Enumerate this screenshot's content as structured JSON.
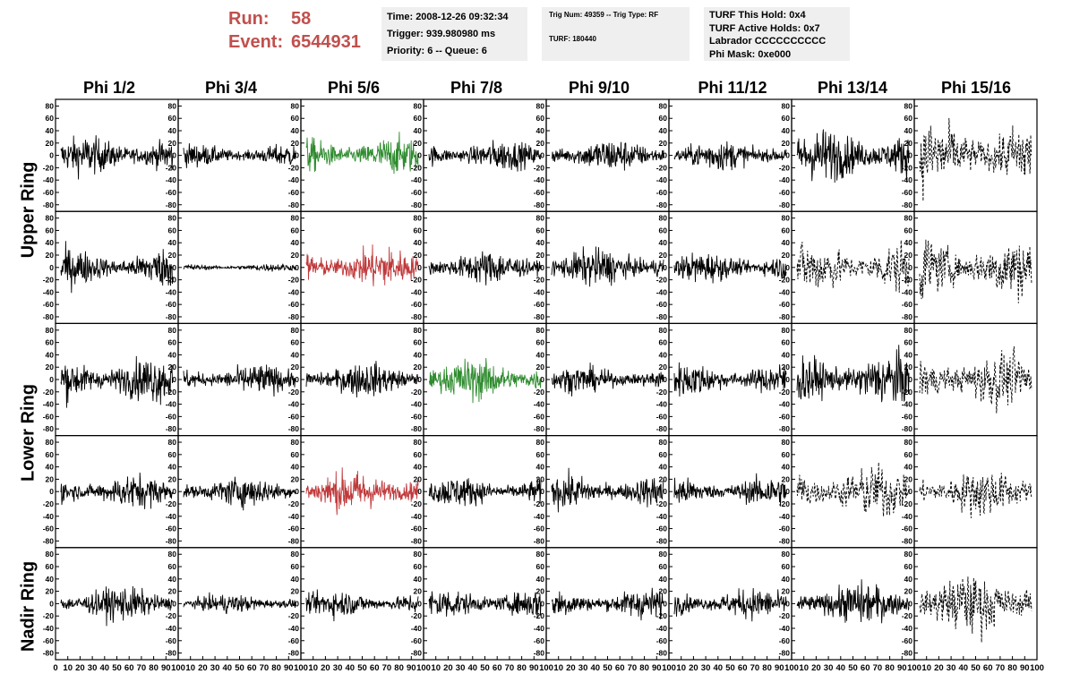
{
  "header": {
    "run_label": "Run:",
    "run_value": "58",
    "event_label": "Event:",
    "event_value": "6544931"
  },
  "info_box_1": {
    "time": "Time: 2008-12-26 09:32:34",
    "trigger": "Trigger: 939.980980 ms",
    "priority": "Priority: 6 -- Queue: 6"
  },
  "info_box_2": {
    "trig": "Trig Num: 49359 -- Trig Type: RF",
    "turf": "TURF: 180440"
  },
  "info_box_3": {
    "hold": "TURF This Hold: 0x4",
    "active": "TURF Active Holds: 0x7",
    "labrador": "Labrador CCCCCCCCCC",
    "mask": "Phi Mask: 0xe000"
  },
  "colors": {
    "green": "#2e8b2e",
    "red": "#c0393b",
    "black": "#000000",
    "title_red": "#c0504d",
    "box_bg": "#efefef"
  },
  "chart_data": {
    "type": "line",
    "columns": [
      "Phi 1/2",
      "Phi 3/4",
      "Phi 5/6",
      "Phi 7/8",
      "Phi 9/10",
      "Phi 11/12",
      "Phi 13/14",
      "Phi 15/16"
    ],
    "rings": [
      "Upper Ring",
      "Lower Ring",
      "Nadir Ring"
    ],
    "ylim": [
      -85,
      85
    ],
    "yticks": [
      -80,
      -60,
      -40,
      -20,
      0,
      20,
      40,
      60,
      80
    ],
    "xlim": [
      0,
      100
    ],
    "xticks": [
      0,
      10,
      20,
      30,
      40,
      50,
      60,
      70,
      80,
      90,
      100
    ],
    "row_rings": [
      "Upper Ring",
      "Upper Ring",
      "Lower Ring",
      "Lower Ring",
      "Nadir Ring"
    ],
    "cells": [
      [
        {
          "style": "solid",
          "color": "black",
          "amp": 20
        },
        {
          "style": "solid",
          "color": "black",
          "amp": 12
        },
        {
          "style": "solid",
          "color": "green",
          "amp": 20
        },
        {
          "style": "solid",
          "color": "black",
          "amp": 16
        },
        {
          "style": "solid",
          "color": "black",
          "amp": 18
        },
        {
          "style": "solid",
          "color": "black",
          "amp": 16
        },
        {
          "style": "solid",
          "color": "black",
          "amp": 28
        },
        {
          "style": "dashed",
          "color": "black",
          "amp": 38
        }
      ],
      [
        {
          "style": "solid",
          "color": "black",
          "amp": 20
        },
        {
          "style": "solid",
          "color": "black",
          "amp": 4
        },
        {
          "style": "solid",
          "color": "red",
          "amp": 22
        },
        {
          "style": "solid",
          "color": "black",
          "amp": 18
        },
        {
          "style": "solid",
          "color": "black",
          "amp": 20
        },
        {
          "style": "solid",
          "color": "black",
          "amp": 16
        },
        {
          "style": "dashed",
          "color": "black",
          "amp": 28
        },
        {
          "style": "dashed",
          "color": "black",
          "amp": 34
        }
      ],
      [
        {
          "style": "solid",
          "color": "black",
          "amp": 24
        },
        {
          "style": "solid",
          "color": "black",
          "amp": 16
        },
        {
          "style": "solid",
          "color": "black",
          "amp": 18
        },
        {
          "style": "solid",
          "color": "green",
          "amp": 22
        },
        {
          "style": "solid",
          "color": "black",
          "amp": 14
        },
        {
          "style": "solid",
          "color": "black",
          "amp": 18
        },
        {
          "style": "solid",
          "color": "black",
          "amp": 28
        },
        {
          "style": "dashed",
          "color": "black",
          "amp": 30
        }
      ],
      [
        {
          "style": "solid",
          "color": "black",
          "amp": 18
        },
        {
          "style": "solid",
          "color": "black",
          "amp": 16
        },
        {
          "style": "solid",
          "color": "red",
          "amp": 22
        },
        {
          "style": "solid",
          "color": "black",
          "amp": 16
        },
        {
          "style": "solid",
          "color": "black",
          "amp": 18
        },
        {
          "style": "solid",
          "color": "black",
          "amp": 16
        },
        {
          "style": "dashed",
          "color": "black",
          "amp": 28
        },
        {
          "style": "dashed",
          "color": "black",
          "amp": 26
        }
      ],
      [
        {
          "style": "solid",
          "color": "black",
          "amp": 18
        },
        {
          "style": "solid",
          "color": "black",
          "amp": 10
        },
        {
          "style": "solid",
          "color": "black",
          "amp": 14
        },
        {
          "style": "solid",
          "color": "black",
          "amp": 16
        },
        {
          "style": "solid",
          "color": "black",
          "amp": 16
        },
        {
          "style": "solid",
          "color": "black",
          "amp": 16
        },
        {
          "style": "solid",
          "color": "black",
          "amp": 22
        },
        {
          "style": "dashed",
          "color": "black",
          "amp": 34
        }
      ]
    ]
  }
}
